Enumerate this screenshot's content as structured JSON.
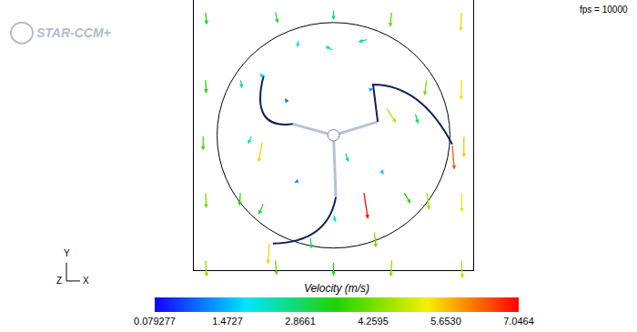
{
  "chart_data": {
    "type": "quiver",
    "logo": "STAR-CCM+",
    "note": "fps = 10000",
    "axes_triad": {
      "x": "X",
      "y": "Y",
      "z": "Z"
    },
    "xlim": [
      -1.2,
      1.2
    ],
    "ylim": [
      -1.2,
      1.2
    ],
    "tick_labels": false,
    "vectors": {
      "x": [
        -1.1,
        -1.1,
        -1.12,
        -1.1,
        -1.1,
        1.1,
        1.1,
        1.12,
        1.1,
        1.1,
        -0.5,
        0,
        0.5,
        -0.5,
        0,
        0.5,
        0,
        -0.4,
        0.3,
        -0.3,
        0.4,
        -0.7,
        0.7,
        0,
        -0.6,
        0.6,
        -0.6,
        0,
        -0.61,
        0.26,
        0.45,
        1.02,
        -0.55,
        0.1,
        -0.8,
        0.8,
        0.8,
        -0.8,
        0.3,
        -0.3,
        0.35,
        -0.2
      ],
      "y": [
        1.1,
        0.5,
        0,
        -0.5,
        -1.1,
        1.1,
        0.5,
        0,
        -0.5,
        -1.1,
        1.1,
        1.12,
        1.1,
        -1.1,
        -1.12,
        -1.1,
        0,
        0.3,
        0.4,
        -0.4,
        -0.3,
        0,
        0.2,
        0.75,
        0.5,
        -0.5,
        -0.6,
        -0.7,
        -0.05,
        -0.5,
        0.25,
        -0.08,
        -0.95,
        -0.15,
        0.5,
        0.5,
        -0.5,
        -0.5,
        0.85,
        0.85,
        -0.85,
        -0.9
      ],
      "u": [
        0.3,
        0.2,
        0,
        0.2,
        0.3,
        -0.2,
        -0.1,
        0,
        0.1,
        0.2,
        0.6,
        0,
        -0.4,
        0.3,
        0,
        -0.2,
        0.2,
        -0.5,
        1.2,
        -1.0,
        0.9,
        -1.0,
        0.8,
        -2.0,
        -0.8,
        1.8,
        -1.2,
        0.5,
        -1.0,
        1.0,
        2.5,
        0.5,
        -0.4,
        0.8,
        0.4,
        -0.5,
        0.6,
        -0.2,
        -2.5,
        -0.3,
        0.4,
        0.3
      ],
      "v": [
        -3.4,
        -3.6,
        -3.8,
        -4.2,
        -4.4,
        -5.0,
        -5.4,
        -5.6,
        -5.2,
        -4.8,
        -3.0,
        -2.8,
        -4.0,
        -4.0,
        -3.6,
        -4.4,
        0.3,
        0.8,
        0.4,
        -0.6,
        -1.3,
        -2.2,
        -2.8,
        1.2,
        1.5,
        -3.0,
        -3.0,
        -2.0,
        -5.4,
        -6.9,
        -4.0,
        -6.4,
        -5.5,
        -2.5,
        -2.4,
        -4.2,
        -4.6,
        -3.6,
        -0.6,
        -2.0,
        -4.2,
        -3.0
      ]
    },
    "colorbar": {
      "title": "Velocity (m/s)",
      "range": [
        0.079277,
        7.0464
      ],
      "ticks": [
        0.079277,
        1.4727,
        2.8661,
        4.2595,
        {
          "value": 5.653,
          "label": "5.6530"
        },
        7.0464
      ],
      "colors": [
        "#1400ff",
        "#00e5ff",
        "#21d400",
        "#f5f000",
        "#ff0000"
      ]
    }
  }
}
